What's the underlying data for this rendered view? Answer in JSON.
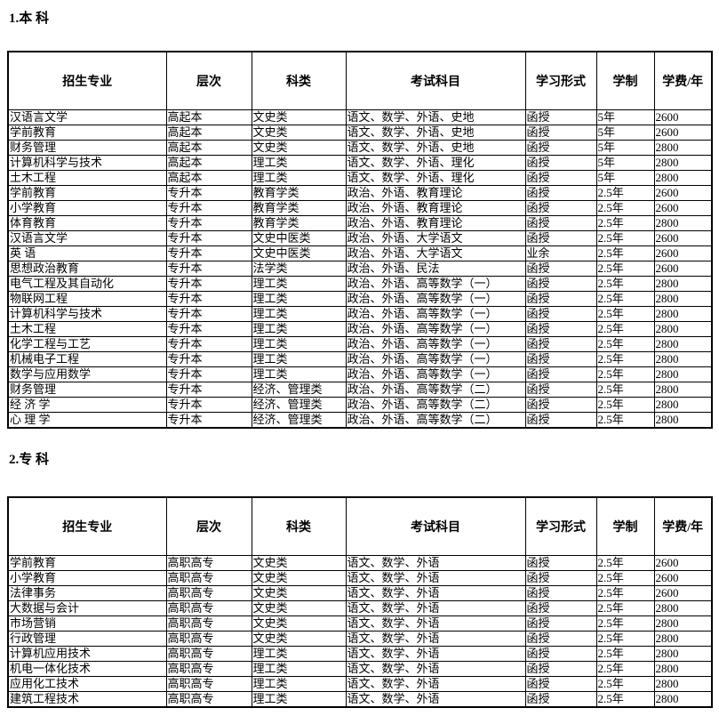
{
  "sections": [
    {
      "title": "1.本 科"
    },
    {
      "title": "2.专 科"
    }
  ],
  "columns": [
    "招生专业",
    "层次",
    "科类",
    "考试科目",
    "学习形式",
    "学制",
    "学费/年"
  ],
  "undergraduate_rows": [
    [
      "汉语言文学",
      "高起本",
      "文史类",
      "语文、数学、外语、史地",
      "函授",
      "5年",
      "2600"
    ],
    [
      "学前教育",
      "高起本",
      "文史类",
      "语文、数学、外语、史地",
      "函授",
      "5年",
      "2600"
    ],
    [
      "财务管理",
      "高起本",
      "文史类",
      "语文、数学、外语、史地",
      "函授",
      "5年",
      "2800"
    ],
    [
      "计算机科学与技术",
      "高起本",
      "理工类",
      "语文、数学、外语、理化",
      "函授",
      "5年",
      "2800"
    ],
    [
      "土木工程",
      "高起本",
      "理工类",
      "语文、数学、外语、理化",
      "函授",
      "5年",
      "2800"
    ],
    [
      "学前教育",
      "专升本",
      "教育学类",
      "政治、外语、教育理论",
      "函授",
      "2.5年",
      "2600"
    ],
    [
      "小学教育",
      "专升本",
      "教育学类",
      "政治、外语、教育理论",
      "函授",
      "2.5年",
      "2600"
    ],
    [
      "体育教育",
      "专升本",
      "教育学类",
      "政治、外语、教育理论",
      "函授",
      "2.5年",
      "2800"
    ],
    [
      "汉语言文学",
      "专升本",
      "文史中医类",
      "政治、外语、大学语文",
      "函授",
      "2.5年",
      "2600"
    ],
    [
      "英 语",
      "专升本",
      "文史中医类",
      "政治、外语、大学语文",
      "业余",
      "2.5年",
      "2600"
    ],
    [
      "思想政治教育",
      "专升本",
      "法学类",
      "政治、外语、民法",
      "函授",
      "2.5年",
      "2600"
    ],
    [
      "电气工程及其自动化",
      "专升本",
      "理工类",
      "政治、外语、高等数学（一）",
      "函授",
      "2.5年",
      "2800"
    ],
    [
      "物联网工程",
      "专升本",
      "理工类",
      "政治、外语、高等数学（一）",
      "函授",
      "2.5年",
      "2800"
    ],
    [
      "计算机科学与技术",
      "专升本",
      "理工类",
      "政治、外语、高等数学（一）",
      "函授",
      "2.5年",
      "2800"
    ],
    [
      "土木工程",
      "专升本",
      "理工类",
      "政治、外语、高等数学（一）",
      "函授",
      "2.5年",
      "2800"
    ],
    [
      "化学工程与工艺",
      "专升本",
      "理工类",
      "政治、外语、高等数学（一）",
      "函授",
      "2.5年",
      "2800"
    ],
    [
      "机械电子工程",
      "专升本",
      "理工类",
      "政治、外语、高等数学（一）",
      "函授",
      "2.5年",
      "2800"
    ],
    [
      "数学与应用数学",
      "专升本",
      "理工类",
      "政治、外语、高等数学（一）",
      "函授",
      "2.5年",
      "2800"
    ],
    [
      "财务管理",
      "专升本",
      "经济、管理类",
      "政治、外语、高等数学（二）",
      "函授",
      "2.5年",
      "2800"
    ],
    [
      "经 济 学",
      "专升本",
      "经济、管理类",
      "政治、外语、高等数学（二）",
      "函授",
      "2.5年",
      "2800"
    ],
    [
      "心 理 学",
      "专升本",
      "经济、管理类",
      "政治、外语、高等数学（二）",
      "函授",
      "2.5年",
      "2800"
    ]
  ],
  "college_rows": [
    [
      "学前教育",
      "高职高专",
      "文史类",
      "语文、数学、外语",
      "函授",
      "2.5年",
      "2600"
    ],
    [
      "小学教育",
      "高职高专",
      "文史类",
      "语文、数学、外语",
      "函授",
      "2.5年",
      "2600"
    ],
    [
      "法律事务",
      "高职高专",
      "文史类",
      "语文、数学、外语",
      "函授",
      "2.5年",
      "2600"
    ],
    [
      "大数据与会计",
      "高职高专",
      "文史类",
      "语文、数学、外语",
      "函授",
      "2.5年",
      "2800"
    ],
    [
      "市场营销",
      "高职高专",
      "文史类",
      "语文、数学、外语",
      "函授",
      "2.5年",
      "2800"
    ],
    [
      "行政管理",
      "高职高专",
      "文史类",
      "语文、数学、外语",
      "函授",
      "2.5年",
      "2800"
    ],
    [
      "计算机应用技术",
      "高职高专",
      "理工类",
      "语文、数学、外语",
      "函授",
      "2.5年",
      "2800"
    ],
    [
      "机电一体化技术",
      "高职高专",
      "理工类",
      "语文、数学、外语",
      "函授",
      "2.5年",
      "2800"
    ],
    [
      "应用化工技术",
      "高职高专",
      "理工类",
      "语文、数学、外语",
      "函授",
      "2.5年",
      "2800"
    ],
    [
      "建筑工程技术",
      "高职高专",
      "理工类",
      "语文、数学、外语",
      "函授",
      "2.5年",
      "2800"
    ]
  ]
}
